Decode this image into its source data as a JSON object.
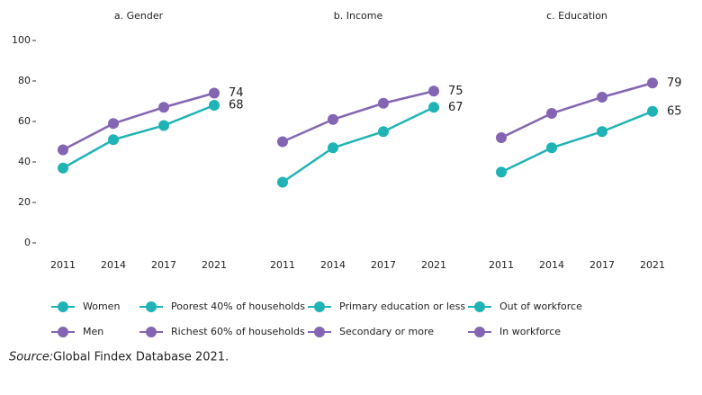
{
  "chart_data": [
    {
      "type": "line",
      "title": "a. Gender",
      "categories": [
        "2011",
        "2014",
        "2017",
        "2021"
      ],
      "series": [
        {
          "name": "Women",
          "color": "#20b3b6",
          "values": [
            37,
            51,
            58,
            68
          ]
        },
        {
          "name": "Men",
          "color": "#8465b3",
          "values": [
            46,
            59,
            67,
            74
          ]
        }
      ],
      "ylim": [
        -5,
        105
      ],
      "yticks": [
        0,
        20,
        40,
        60,
        80,
        100
      ]
    },
    {
      "type": "line",
      "title": "b. Income",
      "categories": [
        "2011",
        "2014",
        "2017",
        "2021"
      ],
      "series": [
        {
          "name": "Poorest 40% of households",
          "color": "#20b3b6",
          "values": [
            30,
            47,
            55,
            67
          ]
        },
        {
          "name": "Richest 60% of households",
          "color": "#8465b3",
          "values": [
            50,
            61,
            69,
            75
          ]
        }
      ],
      "ylim": [
        -5,
        105
      ]
    },
    {
      "type": "line",
      "title": "c. Education",
      "categories": [
        "2011",
        "2014",
        "2017",
        "2021"
      ],
      "series": [
        {
          "name": "Primary education or less",
          "color": "#20b3b6",
          "values": [
            35,
            47,
            55,
            65
          ]
        },
        {
          "name": "Secondary or more",
          "color": "#8465b3",
          "values": [
            52,
            64,
            72,
            79
          ]
        }
      ],
      "ylim": [
        -5,
        105
      ]
    }
  ],
  "legend_extra": [
    {
      "name": "Out of workforce",
      "color": "#20b3b6"
    },
    {
      "name": "In workforce",
      "color": "#8465b3"
    }
  ],
  "source_label": "Source:",
  "source": "Global Findex Database 2021."
}
